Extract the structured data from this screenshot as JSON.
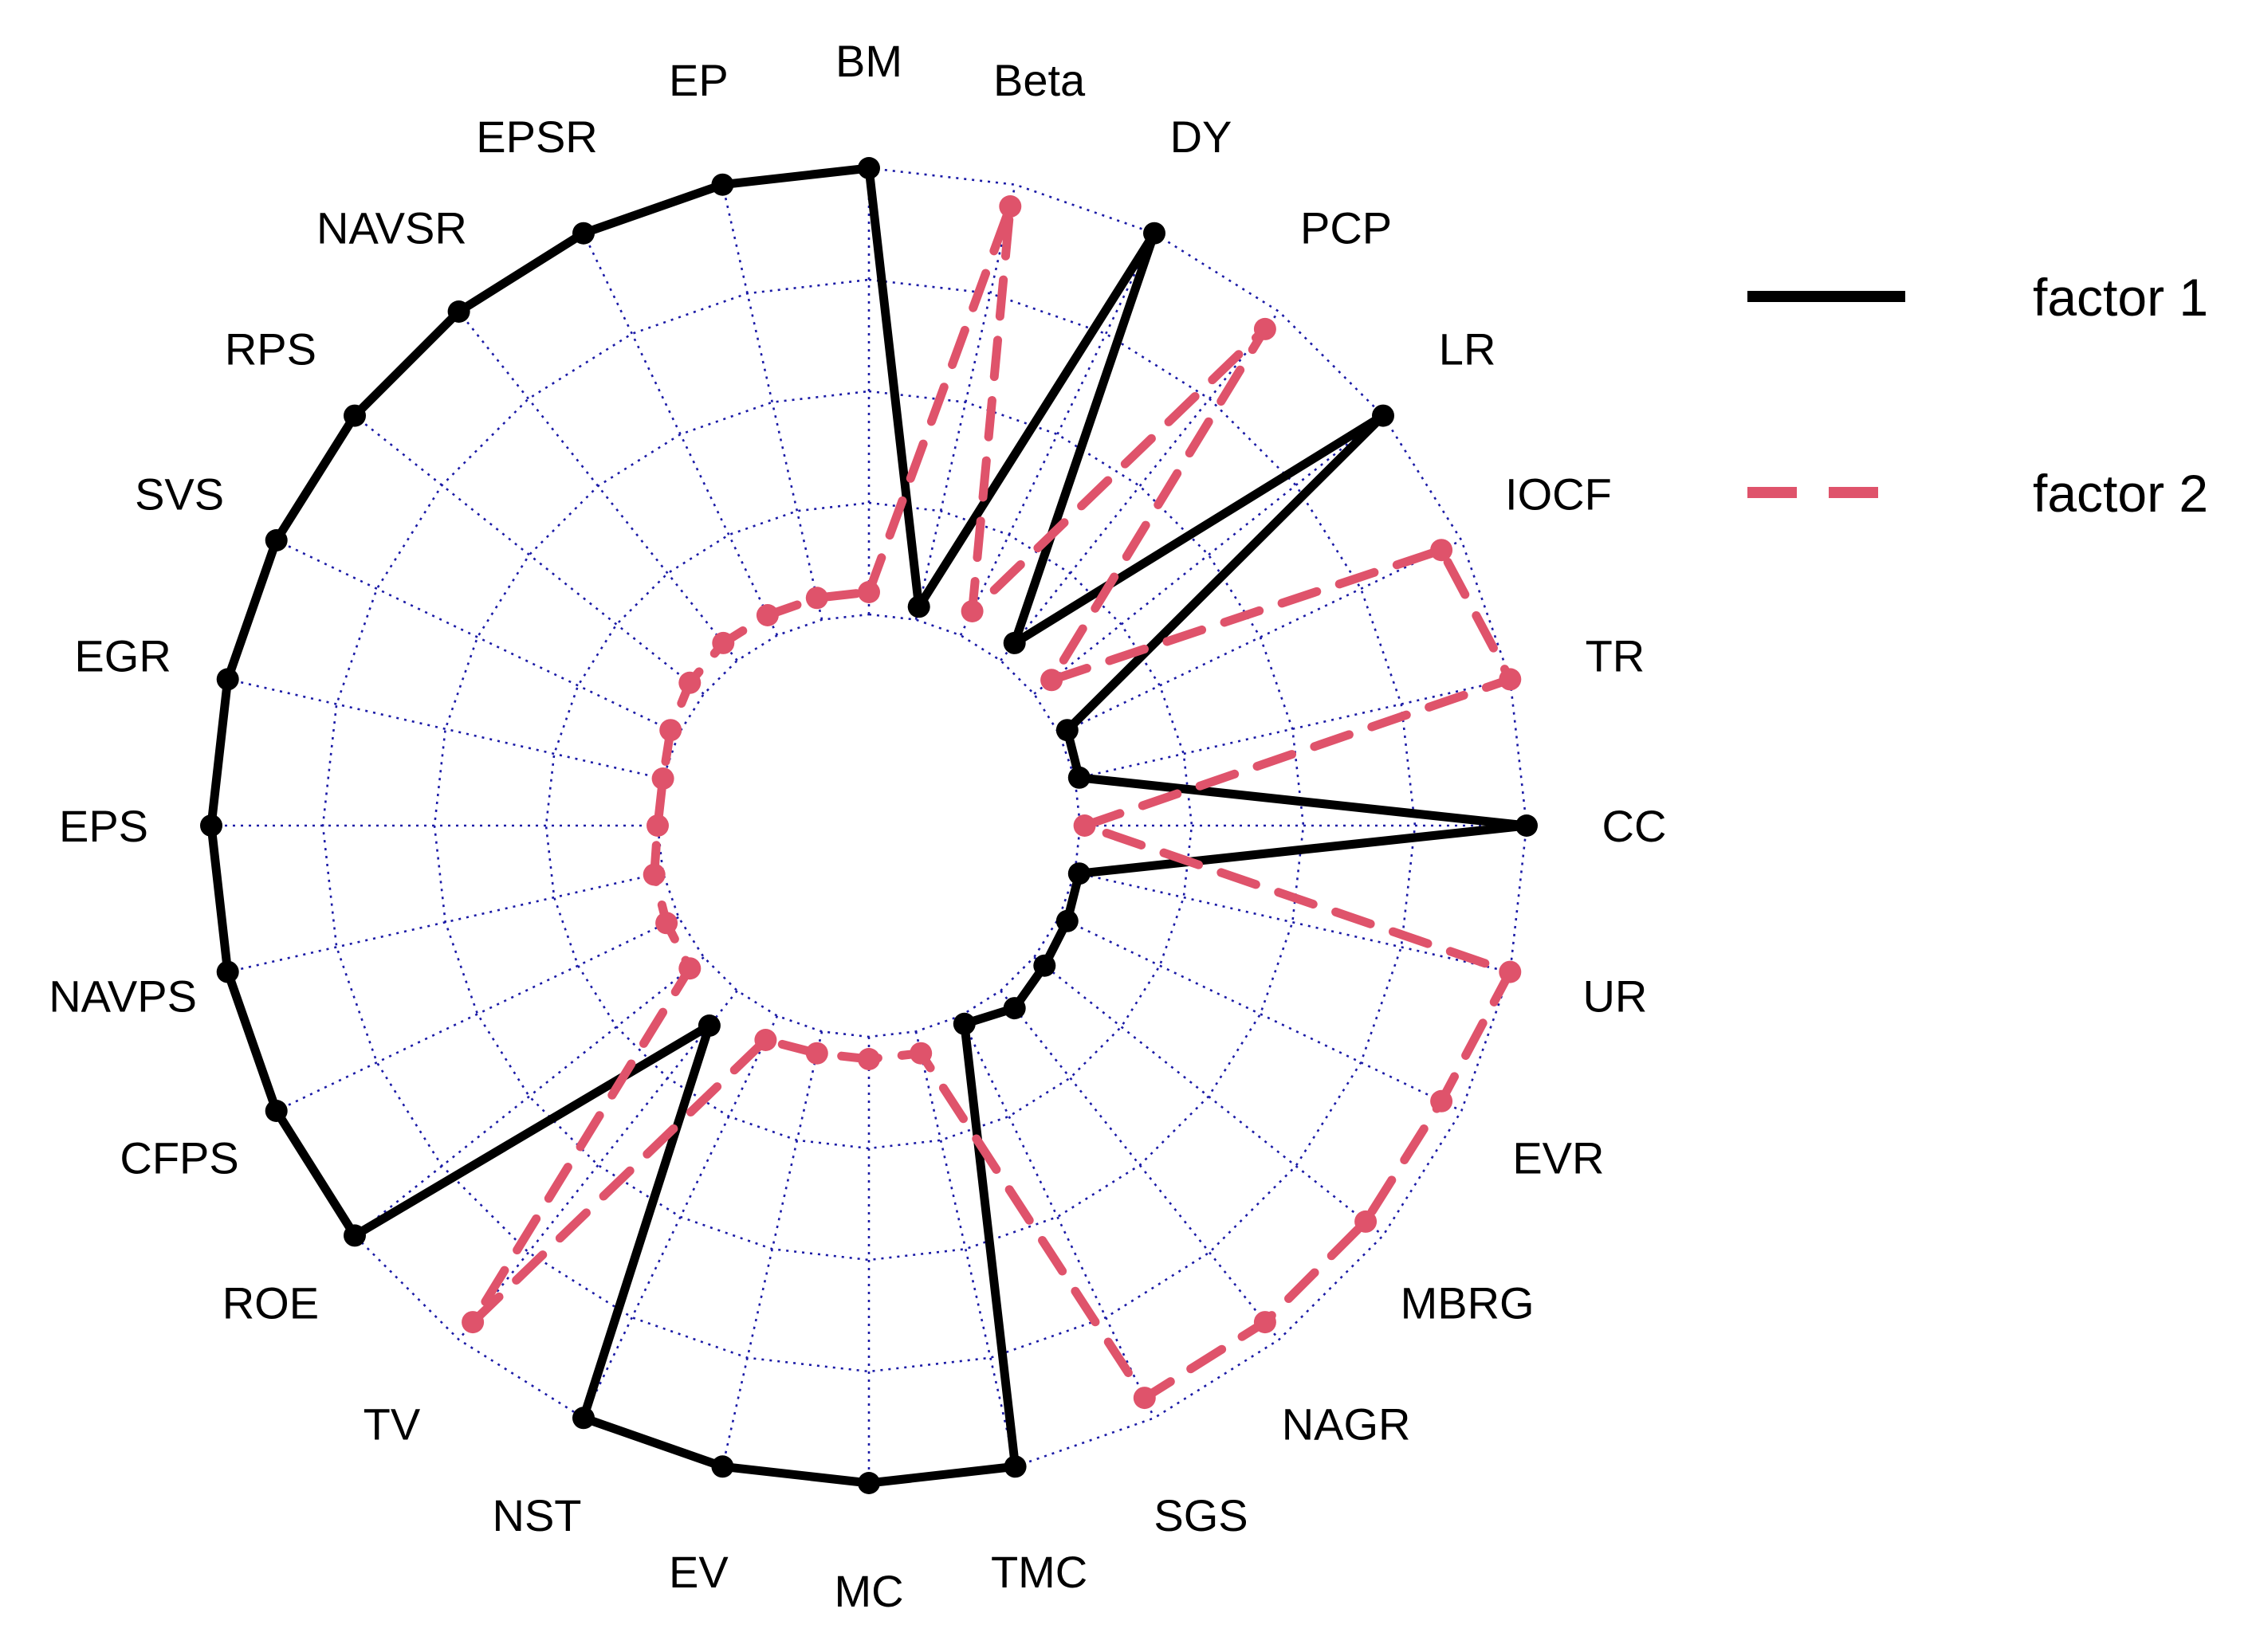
{
  "chart_data": {
    "type": "radar",
    "title": "",
    "axes": [
      "BM",
      "Beta",
      "DY",
      "PCP",
      "LR",
      "IOCF",
      "TR",
      "CC",
      "UR",
      "EVR",
      "MBRG",
      "NAGR",
      "SGS",
      "TMC",
      "MC",
      "EV",
      "NST",
      "TV",
      "ROE",
      "CFPS",
      "NAVPS",
      "EPS",
      "EGR",
      "SVS",
      "RPS",
      "NAVSR",
      "EPSR",
      "EP"
    ],
    "range": [
      0,
      1
    ],
    "grid_levels": [
      0,
      0.25,
      0.5,
      0.75,
      1
    ],
    "series": [
      {
        "name": "factor 1",
        "color": "#000000",
        "dash": "solid",
        "values": [
          1.0,
          0.03,
          1.0,
          0.05,
          1.0,
          0.02,
          0.01,
          1.0,
          0.01,
          0.02,
          0.03,
          0.05,
          0.02,
          1.0,
          1.0,
          1.0,
          1.0,
          0.1,
          1.0,
          1.0,
          1.0,
          1.0,
          1.0,
          1.0,
          1.0,
          1.0,
          1.0,
          1.0
        ]
      },
      {
        "name": "factor 2",
        "color": "#DF536B",
        "dash": "dashed",
        "values": [
          0.05,
          0.95,
          0.06,
          0.95,
          0.05,
          0.95,
          1.0,
          0.01,
          1.0,
          0.95,
          0.95,
          0.95,
          0.95,
          0.05,
          0.05,
          0.05,
          0.06,
          0.95,
          0.04,
          0.03,
          0.02,
          0.0,
          0.0,
          0.02,
          0.04,
          0.05,
          0.05,
          0.05
        ]
      }
    ],
    "legend": {
      "position": "right",
      "entries": [
        "factor 1",
        "factor 2"
      ]
    }
  }
}
